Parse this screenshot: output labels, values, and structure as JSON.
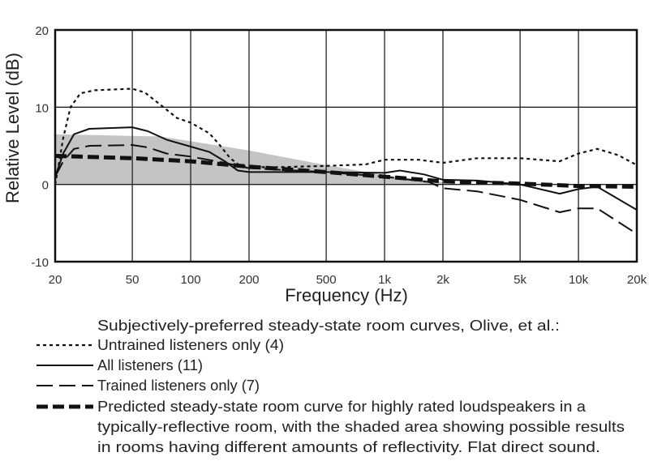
{
  "chart_data": {
    "type": "line",
    "title": "",
    "xlabel": "Frequency (Hz)",
    "ylabel": "Relative Level (dB)",
    "x_scale": "log",
    "xlim": [
      20,
      20000
    ],
    "ylim": [
      -10,
      20
    ],
    "grid": true,
    "x_ticks": [
      20,
      50,
      100,
      200,
      500,
      1000,
      2000,
      5000,
      10000,
      20000
    ],
    "x_tick_labels": [
      "20",
      "50",
      "100",
      "200",
      "500",
      "1k",
      "2k",
      "5k",
      "10k",
      "20k"
    ],
    "y_ticks": [
      -10,
      0,
      10,
      20
    ],
    "y_tick_labels": [
      "-10",
      "0",
      "10",
      "20"
    ],
    "legend_position": "bottom",
    "legend_heading": "Subjectively-preferred steady-state room curves, Olive, et al.:",
    "shaded_area": {
      "color": "#c4c4c4",
      "upper": [
        [
          20,
          6.5
        ],
        [
          70,
          6.2
        ],
        [
          200,
          4.4
        ],
        [
          500,
          2.5
        ],
        [
          1000,
          1.2
        ],
        [
          2000,
          0.3
        ]
      ],
      "lower": [
        [
          20,
          0
        ],
        [
          2000,
          0
        ]
      ]
    },
    "series": [
      {
        "name": "Untrained listeners only (4)",
        "style": "dotted",
        "points": [
          [
            20,
            0
          ],
          [
            21,
            3
          ],
          [
            22,
            6
          ],
          [
            24,
            10
          ],
          [
            27,
            11.8
          ],
          [
            32,
            12.2
          ],
          [
            50,
            12.4
          ],
          [
            58,
            11.9
          ],
          [
            70,
            10.3
          ],
          [
            85,
            8.6
          ],
          [
            100,
            8
          ],
          [
            125,
            6.6
          ],
          [
            140,
            5.2
          ],
          [
            160,
            3.4
          ],
          [
            180,
            2.4
          ],
          [
            250,
            2.2
          ],
          [
            500,
            2.4
          ],
          [
            800,
            2.6
          ],
          [
            1000,
            3.2
          ],
          [
            1500,
            3.2
          ],
          [
            2000,
            2.8
          ],
          [
            3000,
            3.4
          ],
          [
            5000,
            3.4
          ],
          [
            8000,
            3.0
          ],
          [
            10000,
            4.0
          ],
          [
            12500,
            4.6
          ],
          [
            16000,
            3.8
          ],
          [
            20000,
            2.5
          ]
        ]
      },
      {
        "name": "All listeners (11)",
        "style": "solid",
        "points": [
          [
            20,
            1
          ],
          [
            22,
            4
          ],
          [
            25,
            6.5
          ],
          [
            30,
            7.2
          ],
          [
            50,
            7.4
          ],
          [
            60,
            6.9
          ],
          [
            75,
            5.8
          ],
          [
            100,
            4.9
          ],
          [
            125,
            4.2
          ],
          [
            150,
            3.0
          ],
          [
            175,
            1.8
          ],
          [
            200,
            1.6
          ],
          [
            500,
            1.6
          ],
          [
            1000,
            1.5
          ],
          [
            1200,
            1.8
          ],
          [
            1600,
            1.3
          ],
          [
            2000,
            0.6
          ],
          [
            3000,
            0.5
          ],
          [
            5000,
            0
          ],
          [
            8000,
            -1.2
          ],
          [
            10000,
            -0.6
          ],
          [
            12500,
            -0.3
          ],
          [
            20000,
            -3.3
          ]
        ]
      },
      {
        "name": "Trained listeners only (7)",
        "style": "dashed",
        "points": [
          [
            20,
            1
          ],
          [
            22,
            3
          ],
          [
            25,
            4.6
          ],
          [
            30,
            5
          ],
          [
            50,
            5.1
          ],
          [
            60,
            4.8
          ],
          [
            75,
            4.0
          ],
          [
            100,
            3.6
          ],
          [
            150,
            2.8
          ],
          [
            200,
            2.1
          ],
          [
            500,
            1.6
          ],
          [
            1000,
            1.0
          ],
          [
            1700,
            0.3
          ],
          [
            2000,
            -0.5
          ],
          [
            3000,
            -0.9
          ],
          [
            5000,
            -2.0
          ],
          [
            8000,
            -3.6
          ],
          [
            10000,
            -3.1
          ],
          [
            12500,
            -3.1
          ],
          [
            20000,
            -6.4
          ]
        ]
      },
      {
        "name": "Predicted steady-state room curve for highly rated loudspeakers in a typically-reflective room, with the shaded area showing possible results in rooms having different amounts of reflectivity.  Flat direct sound.",
        "style": "heavy-dashed",
        "legend_lines": [
          "Predicted steady-state room curve for highly rated loudspeakers in a",
          "typically-reflective room, with the shaded area showing possible results",
          "in rooms having different amounts of reflectivity.  Flat direct sound."
        ],
        "points": [
          [
            20,
            3.7
          ],
          [
            50,
            3.4
          ],
          [
            100,
            3.0
          ],
          [
            200,
            2.3
          ],
          [
            500,
            1.6
          ],
          [
            1000,
            1.0
          ],
          [
            2000,
            0.4
          ],
          [
            5000,
            0.1
          ],
          [
            10000,
            -0.2
          ],
          [
            20000,
            -0.3
          ]
        ]
      }
    ]
  }
}
